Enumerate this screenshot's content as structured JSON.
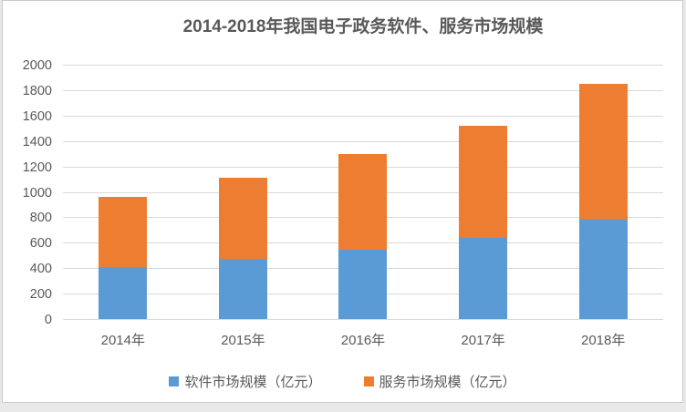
{
  "chart_data": {
    "type": "bar",
    "stacked": true,
    "title": "2014-2018年我国电子政务软件、服务市场规模",
    "categories": [
      "2014年",
      "2015年",
      "2016年",
      "2017年",
      "2018年"
    ],
    "series": [
      {
        "name": "软件市场规模（亿元）",
        "color": "#5B9BD5",
        "values": [
          410,
          470,
          545,
          640,
          780
        ]
      },
      {
        "name": "服务市场规模（亿元）",
        "color": "#ED7D31",
        "values": [
          550,
          640,
          750,
          880,
          1070
        ]
      }
    ],
    "stack_totals": [
      960,
      1110,
      1295,
      1520,
      1850
    ],
    "xlabel": "",
    "ylabel": "",
    "ylim": [
      0,
      2000
    ],
    "yticks": [
      0,
      200,
      400,
      600,
      800,
      1000,
      1200,
      1400,
      1600,
      1800,
      2000
    ],
    "grid": true,
    "legend_position": "bottom"
  }
}
